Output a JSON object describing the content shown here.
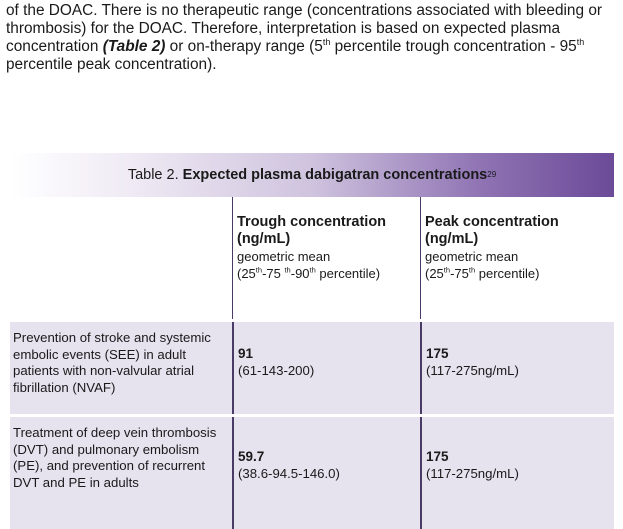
{
  "paragraph": {
    "part1": "of the DOAC. There is no therapeutic range (concentrations associated with bleeding or thrombosis) for the DOAC. Therefore, interpretation is based on expected plasma concentration ",
    "table_ref": "(Table 2)",
    "part2": " or on-therapy range (5",
    "sup1": "th",
    "part3": " percentile trough concentration - 95",
    "sup2": "th",
    "part4": " percentile peak concentration)."
  },
  "table": {
    "caption_prefix": "Table 2. ",
    "caption_bold": "Expected plasma dabigatran concentrations",
    "caption_ref": "29",
    "columns": [
      {
        "title": "Trough concentration (ng/mL)",
        "sub1": "geometric mean",
        "sub2_a": "(25",
        "sub2_s1": "th",
        "sub2_b": "-75 ",
        "sub2_s2": "th",
        "sub2_c": "-90",
        "sub2_s3": "th",
        "sub2_d": " percentile)"
      },
      {
        "title": "Peak concentration (ng/mL)",
        "sub1": "geometric mean",
        "sub2_a": "(25",
        "sub2_s1": "th",
        "sub2_b": "-75",
        "sub2_s2": "th",
        "sub2_c": " percentile)"
      }
    ],
    "rows": [
      {
        "indication": "Prevention of stroke and systemic embolic events (SEE) in adult patients with non-valvular atrial fibrillation (NVAF)",
        "trough_value": "91",
        "trough_range": "(61-143-200)",
        "peak_value": "175",
        "peak_range": "(117-275ng/mL)"
      },
      {
        "indication": "Treatment of deep vein thrombosis (DVT) and pulmonary embolism (PE), and prevention of recurrent DVT and PE in adults",
        "trough_value": "59.7",
        "trough_range": "(38.6-94.5-146.0)",
        "peak_value": "175",
        "peak_range": "(117-275ng/mL)"
      }
    ]
  }
}
